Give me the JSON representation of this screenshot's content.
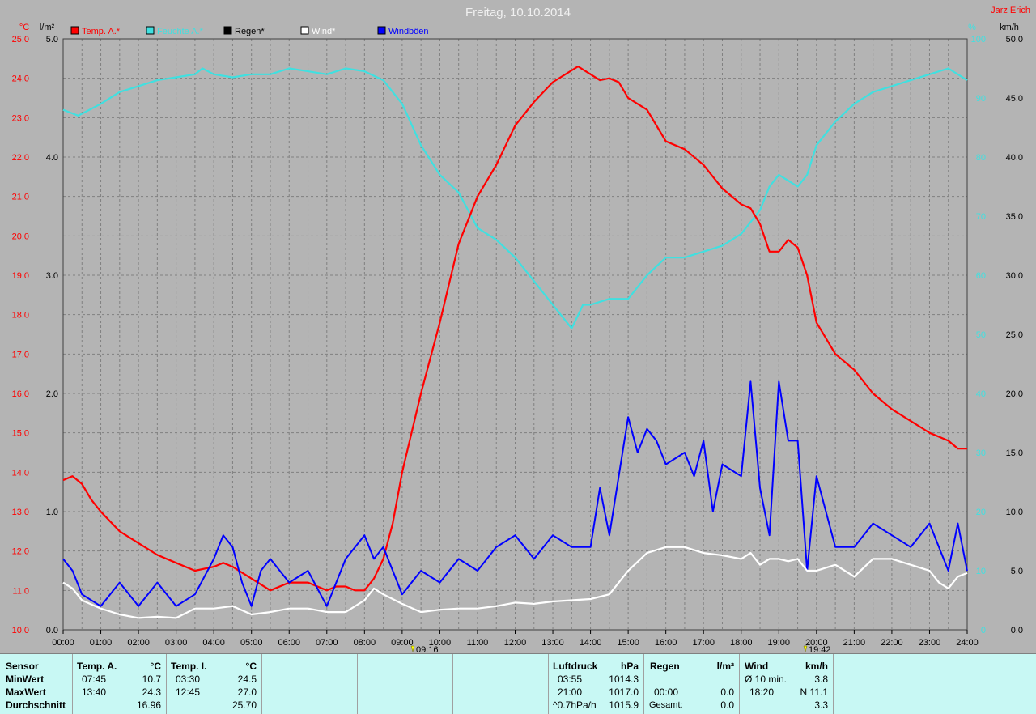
{
  "title": "Freitag, 10.10.2014",
  "author": "Jarz Erich",
  "units": {
    "temp": "°C",
    "rain": "l/m²",
    "humidity": "%",
    "wind": "km/h"
  },
  "legend": [
    {
      "label": "Temp. A.*",
      "color": "#ff0000"
    },
    {
      "label": "Feuchte A.*",
      "color": "#40e0e0"
    },
    {
      "label": "Regen*",
      "color": "#000000"
    },
    {
      "label": "Wind*",
      "color": "#ffffff"
    },
    {
      "label": "Windböen",
      "color": "#0000ff"
    }
  ],
  "sunrise": "09:16",
  "sunset": "19:42",
  "chart_data": {
    "type": "line",
    "x_ticks": [
      "00:00",
      "01:00",
      "02:00",
      "03:00",
      "04:00",
      "05:00",
      "06:00",
      "07:00",
      "08:00",
      "09:00",
      "10:00",
      "11:00",
      "12:00",
      "13:00",
      "14:00",
      "15:00",
      "16:00",
      "17:00",
      "18:00",
      "19:00",
      "20:00",
      "21:00",
      "22:00",
      "23:00",
      "24:00"
    ],
    "axes": {
      "temp": {
        "min": 10,
        "max": 25,
        "ticks": [
          "10.0",
          "11.0",
          "12.0",
          "13.0",
          "14.0",
          "15.0",
          "16.0",
          "17.0",
          "18.0",
          "19.0",
          "20.0",
          "21.0",
          "22.0",
          "23.0",
          "24.0",
          "25.0"
        ]
      },
      "rain": {
        "min": 0,
        "max": 5,
        "ticks": [
          "0.0",
          "1.0",
          "2.0",
          "3.0",
          "4.0",
          "5.0"
        ]
      },
      "humidity": {
        "min": 0,
        "max": 100,
        "ticks": [
          "0",
          "10",
          "20",
          "30",
          "40",
          "50",
          "60",
          "70",
          "80",
          "90",
          "100"
        ]
      },
      "wind": {
        "min": 0,
        "max": 50,
        "ticks": [
          "0.0",
          "5.0",
          "10.0",
          "15.0",
          "20.0",
          "25.0",
          "30.0",
          "35.0",
          "40.0",
          "45.0",
          "50.0"
        ]
      }
    },
    "grid": true,
    "series": [
      {
        "name": "Temp. A.*",
        "axis": "temp",
        "color": "#ff0000",
        "x": [
          0,
          0.25,
          0.5,
          0.75,
          1,
          1.5,
          2,
          2.5,
          3,
          3.5,
          4,
          4.25,
          4.5,
          5,
          5.5,
          6,
          6.5,
          7,
          7.25,
          7.5,
          7.75,
          8,
          8.25,
          8.5,
          8.75,
          9,
          9.5,
          10,
          10.5,
          11,
          11.5,
          12,
          12.5,
          13,
          13.5,
          13.67,
          14,
          14.25,
          14.5,
          14.75,
          15,
          15.5,
          16,
          16.5,
          17,
          17.5,
          18,
          18.25,
          18.5,
          18.75,
          19,
          19.25,
          19.5,
          19.75,
          20,
          20.5,
          21,
          21.5,
          22,
          22.5,
          23,
          23.5,
          23.75,
          24
        ],
        "values": [
          13.8,
          13.9,
          13.7,
          13.3,
          13.0,
          12.5,
          12.2,
          11.9,
          11.7,
          11.5,
          11.6,
          11.7,
          11.6,
          11.3,
          11.0,
          11.2,
          11.2,
          11.0,
          11.1,
          11.1,
          11.0,
          11.0,
          11.3,
          11.8,
          12.7,
          14.0,
          16.0,
          17.8,
          19.8,
          21.0,
          21.8,
          22.8,
          23.4,
          23.9,
          24.2,
          24.3,
          24.1,
          23.95,
          24.0,
          23.9,
          23.5,
          23.2,
          22.4,
          22.2,
          21.8,
          21.2,
          20.8,
          20.7,
          20.3,
          19.6,
          19.6,
          19.9,
          19.7,
          19.0,
          17.8,
          17.0,
          16.6,
          16.0,
          15.6,
          15.3,
          15.0,
          14.8,
          14.6,
          14.6
        ]
      },
      {
        "name": "Feuchte A.*",
        "axis": "humidity",
        "color": "#40e0e0",
        "x": [
          0,
          0.4,
          1,
          1.5,
          2,
          2.5,
          3,
          3.5,
          3.7,
          4,
          4.5,
          5,
          5.5,
          6,
          6.5,
          7,
          7.5,
          8,
          8.5,
          9,
          9.5,
          10,
          10.5,
          11,
          11.5,
          12,
          12.5,
          13,
          13.5,
          13.8,
          14,
          14.5,
          15,
          15.5,
          16,
          16.5,
          17,
          17.5,
          18,
          18.5,
          18.75,
          19,
          19.25,
          19.5,
          19.75,
          20,
          20.5,
          21,
          21.5,
          22,
          22.5,
          23,
          23.5,
          24
        ],
        "values": [
          88,
          87,
          89,
          91,
          92,
          93,
          93.5,
          94,
          95,
          94,
          93.5,
          94,
          94,
          95,
          94.5,
          94,
          95,
          94.5,
          93,
          89,
          82,
          77,
          74,
          68,
          66,
          63,
          59,
          55,
          51,
          55,
          55,
          56,
          56,
          60,
          63,
          63,
          64,
          65,
          67,
          71,
          75,
          77,
          76,
          75,
          77,
          82,
          86,
          89,
          91,
          92,
          93,
          94,
          95,
          93
        ]
      },
      {
        "name": "Wind*",
        "axis": "wind",
        "color": "#ffffff",
        "x": [
          0,
          0.25,
          0.5,
          1,
          1.5,
          2,
          2.5,
          3,
          3.5,
          4,
          4.5,
          5,
          5.5,
          6,
          6.5,
          7,
          7.5,
          8,
          8.25,
          8.5,
          9,
          9.5,
          10,
          10.5,
          11,
          11.5,
          12,
          12.5,
          13,
          13.5,
          14,
          14.5,
          15,
          15.5,
          16,
          16.5,
          17,
          17.5,
          18,
          18.25,
          18.5,
          18.75,
          19,
          19.25,
          19.5,
          19.75,
          20,
          20.5,
          21,
          21.5,
          22,
          22.5,
          23,
          23.25,
          23.5,
          23.75,
          24
        ],
        "values": [
          4,
          3.5,
          2.5,
          1.8,
          1.3,
          1.0,
          1.1,
          1.0,
          1.8,
          1.8,
          2.0,
          1.3,
          1.5,
          1.8,
          1.8,
          1.5,
          1.5,
          2.5,
          3.5,
          3.0,
          2.2,
          1.5,
          1.7,
          1.8,
          1.8,
          2.0,
          2.3,
          2.2,
          2.4,
          2.5,
          2.6,
          3.0,
          5.0,
          6.5,
          7.0,
          7.0,
          6.5,
          6.3,
          6.0,
          6.5,
          5.5,
          6.0,
          6.0,
          5.8,
          6.0,
          5.0,
          5.0,
          5.5,
          4.5,
          6.0,
          6.0,
          5.5,
          5.0,
          4.0,
          3.5,
          4.5,
          4.8
        ]
      },
      {
        "name": "Windböen",
        "axis": "wind",
        "color": "#0000ff",
        "x": [
          0,
          0.25,
          0.5,
          1,
          1.5,
          2,
          2.5,
          3,
          3.5,
          4,
          4.25,
          4.5,
          4.75,
          5,
          5.25,
          5.5,
          6,
          6.5,
          7,
          7.25,
          7.5,
          8,
          8.25,
          8.5,
          9,
          9.5,
          10,
          10.5,
          11,
          11.5,
          12,
          12.5,
          13,
          13.5,
          14,
          14.25,
          14.5,
          15,
          15.25,
          15.5,
          15.75,
          16,
          16.5,
          16.75,
          17,
          17.25,
          17.5,
          18,
          18.25,
          18.5,
          18.75,
          19,
          19.25,
          19.5,
          19.75,
          20,
          20.5,
          21,
          21.5,
          22,
          22.5,
          23,
          23.5,
          23.75,
          24
        ],
        "values": [
          6,
          5,
          3,
          2,
          4,
          2,
          4,
          2,
          3,
          6,
          8,
          7,
          4,
          2,
          5,
          6,
          4,
          5,
          2,
          4,
          6,
          8,
          6,
          7,
          3,
          5,
          4,
          6,
          5,
          7,
          8,
          6,
          8,
          7,
          7,
          12,
          8,
          18,
          15,
          17,
          16,
          14,
          15,
          13,
          16,
          10,
          14,
          13,
          21,
          12,
          8,
          21,
          16,
          16,
          5,
          13,
          7,
          7,
          9,
          8,
          7,
          9,
          5,
          9,
          5
        ]
      }
    ]
  },
  "panel": {
    "sensor": {
      "header": "Sensor",
      "min": "MinWert",
      "max": "MaxWert",
      "avg": "Durchschnitt"
    },
    "temp_a": {
      "header": "Temp. A.",
      "unit": "°C",
      "min_time": "07:45",
      "min_val": "10.7",
      "max_time": "13:40",
      "max_val": "24.3",
      "avg": "16.96"
    },
    "temp_i": {
      "header": "Temp. I.",
      "unit": "°C",
      "min_time": "03:30",
      "min_val": "24.5",
      "max_time": "12:45",
      "max_val": "27.0",
      "avg": "25.70"
    },
    "pressure": {
      "header": "Luftdruck",
      "unit": "hPa",
      "min_time": "03:55",
      "min_val": "1014.3",
      "max_time": "21:00",
      "max_val": "1017.0",
      "trend": "^0.7hPa/h",
      "avg": "1015.9"
    },
    "rain": {
      "header": "Regen",
      "unit": "l/m²",
      "time": "00:00",
      "val": "0.0",
      "total_label": "Gesamt:",
      "total": "0.0"
    },
    "wind": {
      "header": "Wind",
      "unit": "km/h",
      "avg_label": "Ø 10 min.",
      "avg_val": "3.8",
      "gust_time": "18:20",
      "gust_val": "N 11.1",
      "mean": "3.3"
    }
  }
}
